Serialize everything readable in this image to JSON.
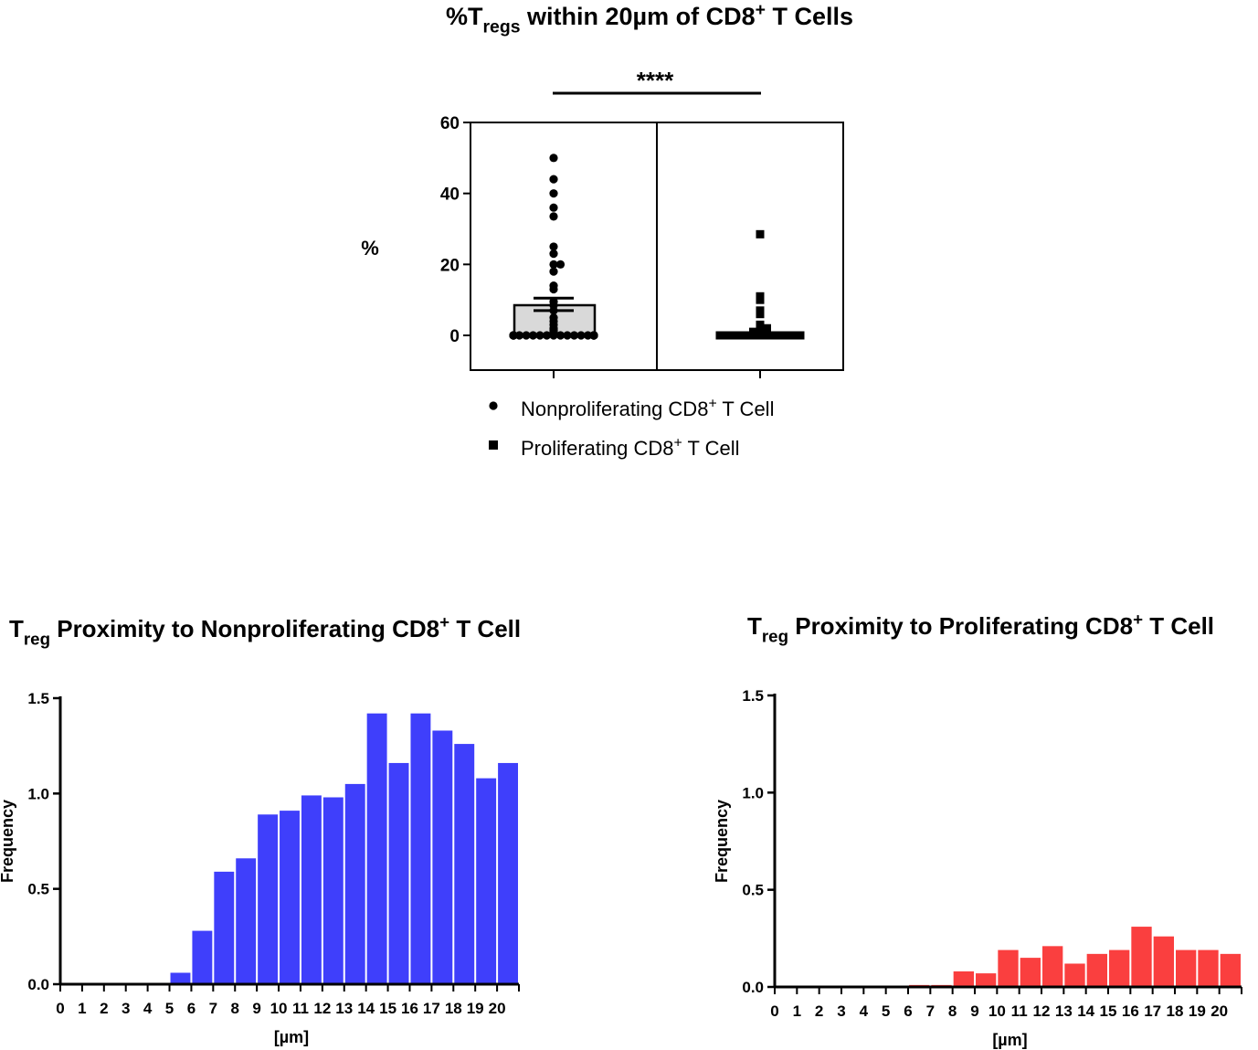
{
  "chart_data": [
    {
      "type": "scatter",
      "title_parts": [
        "%T",
        "regs",
        " within 20µm of CD8",
        "+",
        " T Cells"
      ],
      "ylabel": "%",
      "ylim": [
        -10,
        60
      ],
      "yticks": [
        "0",
        "20",
        "40",
        "60"
      ],
      "significance": "****",
      "bar_mean": 8.5,
      "error_sem": [
        7,
        10.5
      ],
      "series": [
        {
          "name_parts": [
            "Nonproliferating CD8",
            "+",
            " T Cell"
          ],
          "marker": "circle",
          "values": [
            50,
            44,
            40,
            36,
            33.5,
            25,
            23,
            20,
            20,
            18,
            14,
            13,
            9.5,
            8.5,
            7,
            5,
            4,
            3,
            2,
            1.5,
            1,
            0.5,
            0,
            0,
            0,
            0,
            0,
            0,
            0,
            0,
            0,
            0,
            0,
            0,
            0,
            0,
            0,
            0,
            0,
            0,
            0,
            0,
            0,
            0
          ]
        },
        {
          "name_parts": [
            "Proliferating CD8",
            "+",
            " T Cell"
          ],
          "marker": "square",
          "values": [
            28.5,
            11,
            10,
            7,
            6,
            3,
            2,
            2,
            1.5,
            1.5,
            1,
            1,
            1,
            0.5,
            0.5,
            0.5,
            0,
            0,
            0,
            0,
            0,
            0,
            0,
            0,
            0,
            0,
            0,
            0,
            0,
            0,
            0,
            0,
            0,
            0,
            0,
            0,
            0,
            0
          ]
        }
      ]
    },
    {
      "type": "bar",
      "title_parts": [
        "T",
        "reg",
        " Proximity to Nonproliferating CD8",
        "+",
        " T Cell"
      ],
      "xlabel": "[µm]",
      "ylabel": "Frequency",
      "ylim": [
        0,
        1.5
      ],
      "yticks": [
        "0.0",
        "0.5",
        "1.0",
        "1.5"
      ],
      "xticks": [
        "0",
        "1",
        "2",
        "3",
        "4",
        "5",
        "6",
        "7",
        "8",
        "9",
        "10",
        "11",
        "12",
        "13",
        "14",
        "15",
        "16",
        "17",
        "18",
        "19",
        "20"
      ],
      "color": "#3f3ffb",
      "values": [
        0,
        0,
        0,
        0,
        0,
        0.06,
        0.28,
        0.59,
        0.66,
        0.89,
        0.91,
        0.99,
        0.98,
        1.05,
        1.42,
        1.16,
        1.42,
        1.33,
        1.26,
        1.08,
        1.16
      ]
    },
    {
      "type": "bar",
      "title_parts": [
        "T",
        "reg",
        " Proximity to Proliferating CD8",
        "+",
        " T Cell"
      ],
      "xlabel": "[µm]",
      "ylabel": "Frequency",
      "ylim": [
        0,
        1.5
      ],
      "yticks": [
        "0.0",
        "0.5",
        "1.0",
        "1.5"
      ],
      "xticks": [
        "0",
        "1",
        "2",
        "3",
        "4",
        "5",
        "6",
        "7",
        "8",
        "9",
        "10",
        "11",
        "12",
        "13",
        "14",
        "15",
        "16",
        "17",
        "18",
        "19",
        "20"
      ],
      "color": "#fa3f3f",
      "values": [
        0,
        0,
        0,
        0,
        0,
        0,
        0.01,
        0.01,
        0.08,
        0.07,
        0.19,
        0.15,
        0.21,
        0.12,
        0.17,
        0.19,
        0.31,
        0.26,
        0.19,
        0.19,
        0.17
      ]
    }
  ]
}
